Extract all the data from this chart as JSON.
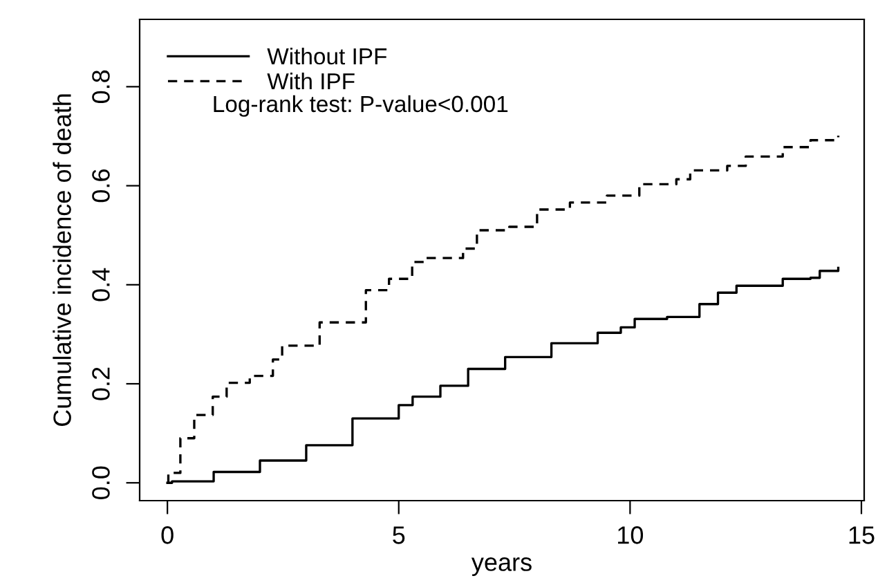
{
  "chart_data": {
    "type": "step",
    "xlabel": "years",
    "ylabel": "Cumulative incidence of death",
    "xlim": [
      -0.6,
      15.06
    ],
    "ylim": [
      -0.036,
      0.936
    ],
    "xticks": [
      0,
      5,
      10,
      15
    ],
    "yticks": [
      {
        "value": 0,
        "label": "0.0"
      },
      0.2,
      0.4,
      0.6,
      0.8
    ],
    "legend": "top left",
    "grid": false,
    "annotations": [
      "Log-rank test: P-value<0.001"
    ],
    "series": [
      {
        "name": "Without IPF",
        "color": "#000000",
        "line_style": "solid",
        "x": [
          0,
          0.1,
          1,
          2,
          3,
          4,
          5,
          5.3,
          5.9,
          6.5,
          7.3,
          8.3,
          9.3,
          9.8,
          10.1,
          10.8,
          11.5,
          11.9,
          12.3,
          13.3,
          13.9,
          14.1,
          14.5
        ],
        "values": [
          0,
          0.003,
          0.022,
          0.045,
          0.076,
          0.13,
          0.157,
          0.174,
          0.196,
          0.23,
          0.254,
          0.282,
          0.303,
          0.314,
          0.331,
          0.335,
          0.361,
          0.384,
          0.398,
          0.412,
          0.414,
          0.428,
          0.434
        ]
      },
      {
        "name": "With IPF",
        "color": "#000000",
        "line_style": "dashed",
        "x": [
          0,
          0.02,
          0.28,
          0.58,
          0.98,
          1.28,
          1.78,
          2.28,
          2.48,
          3.29,
          4.29,
          4.79,
          5.29,
          5.6,
          6.39,
          6.69,
          7.39,
          7.99,
          8.7,
          9.5,
          10.2,
          11.0,
          11.3,
          12.1,
          12.5,
          13.3,
          13.9,
          14.5
        ],
        "values": [
          0,
          0.02,
          0.09,
          0.137,
          0.174,
          0.202,
          0.216,
          0.249,
          0.277,
          0.324,
          0.389,
          0.412,
          0.446,
          0.454,
          0.473,
          0.51,
          0.517,
          0.552,
          0.566,
          0.58,
          0.603,
          0.613,
          0.631,
          0.64,
          0.659,
          0.678,
          0.692,
          0.701
        ]
      }
    ]
  }
}
